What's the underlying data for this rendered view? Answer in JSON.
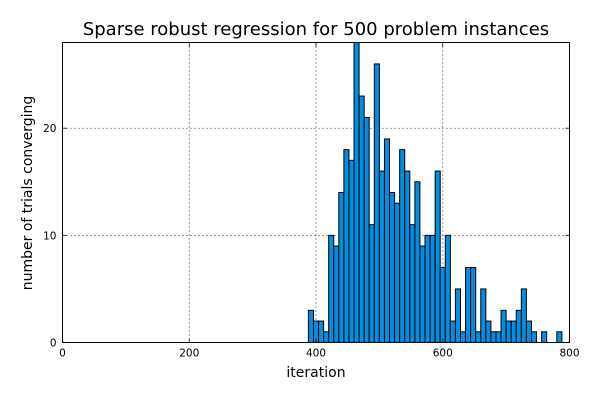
{
  "chart_data": {
    "type": "bar",
    "title": "Sparse robust regression for 500 problem instances",
    "xlabel": "iteration",
    "ylabel": "number of trials converging",
    "xlim": [
      0,
      800
    ],
    "ylim": [
      0,
      28
    ],
    "xticks": [
      0,
      200,
      400,
      600,
      800
    ],
    "yticks": [
      0,
      10,
      20
    ],
    "grid": true,
    "bar_color": "#008fe0",
    "bin_width": 8,
    "bin_start": 388,
    "values": [
      3,
      2,
      2,
      1,
      10,
      9,
      14,
      18,
      17,
      28,
      23,
      21,
      11,
      26,
      16,
      19,
      14,
      13,
      18,
      16,
      11,
      15,
      9,
      10,
      10,
      16,
      7,
      10,
      2,
      5,
      1,
      7,
      7,
      1,
      5,
      2,
      1,
      1,
      3,
      2,
      2,
      3,
      5,
      2,
      1,
      0,
      1,
      0,
      0,
      1
    ]
  }
}
